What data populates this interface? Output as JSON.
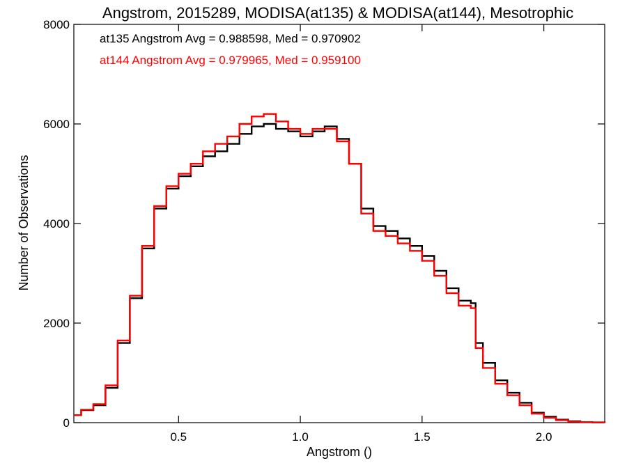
{
  "chart_data": {
    "type": "line",
    "step": true,
    "title": "Angstrom, 2015289, MODISA(at135) & MODISA(at144), Mesotrophic",
    "xlabel": "Angstrom ()",
    "ylabel": "Number of Observations",
    "xlim": [
      0.07,
      2.25
    ],
    "ylim": [
      0,
      8000
    ],
    "x_ticks": [
      0.5,
      1.0,
      1.5,
      2.0
    ],
    "x_tick_labels": [
      "0.5",
      "1.0",
      "1.5",
      "2.0"
    ],
    "y_ticks": [
      0,
      2000,
      4000,
      6000,
      8000
    ],
    "y_tick_labels": [
      "0",
      "2000",
      "4000",
      "6000",
      "8000"
    ],
    "grid": false,
    "legend_position": "top-left",
    "annotations": [
      {
        "text": "at135 Angstrom Avg = 0.988598, Med = 0.970902",
        "color": "#000000"
      },
      {
        "text": "at144 Angstrom Avg = 0.979965, Med = 0.959100",
        "color": "#ff0000"
      }
    ],
    "series": [
      {
        "color": "#000000",
        "x": [
          0.07,
          0.1,
          0.15,
          0.2,
          0.25,
          0.3,
          0.35,
          0.4,
          0.45,
          0.5,
          0.55,
          0.6,
          0.65,
          0.7,
          0.75,
          0.8,
          0.85,
          0.9,
          0.95,
          1.0,
          1.05,
          1.1,
          1.15,
          1.2,
          1.25,
          1.3,
          1.35,
          1.4,
          1.45,
          1.5,
          1.55,
          1.6,
          1.65,
          1.7,
          1.72,
          1.75,
          1.8,
          1.85,
          1.9,
          1.95,
          2.0,
          2.05,
          2.1,
          2.15,
          2.2,
          2.25
        ],
        "y": [
          150,
          250,
          350,
          700,
          1600,
          2500,
          3500,
          4300,
          4700,
          4950,
          5150,
          5350,
          5450,
          5600,
          5800,
          5950,
          6000,
          5900,
          5850,
          5750,
          5850,
          5950,
          5700,
          5200,
          4300,
          3950,
          3850,
          3700,
          3550,
          3350,
          3050,
          2700,
          2450,
          2400,
          1600,
          1200,
          850,
          600,
          400,
          200,
          120,
          60,
          30,
          10,
          5,
          0
        ]
      },
      {
        "color": "#ff0000",
        "x": [
          0.07,
          0.1,
          0.15,
          0.2,
          0.25,
          0.3,
          0.35,
          0.4,
          0.45,
          0.5,
          0.55,
          0.6,
          0.65,
          0.7,
          0.75,
          0.8,
          0.85,
          0.9,
          0.95,
          1.0,
          1.05,
          1.1,
          1.15,
          1.2,
          1.25,
          1.3,
          1.35,
          1.4,
          1.45,
          1.5,
          1.55,
          1.6,
          1.65,
          1.7,
          1.72,
          1.75,
          1.8,
          1.85,
          1.9,
          1.95,
          2.0,
          2.05,
          2.1,
          2.15,
          2.2,
          2.25
        ],
        "y": [
          150,
          260,
          370,
          750,
          1650,
          2550,
          3550,
          4350,
          4750,
          5000,
          5200,
          5450,
          5600,
          5750,
          6000,
          6150,
          6200,
          6050,
          5900,
          5800,
          5900,
          5900,
          5650,
          5200,
          4200,
          3850,
          3750,
          3600,
          3450,
          3250,
          2950,
          2600,
          2350,
          2300,
          1500,
          1100,
          780,
          550,
          350,
          180,
          100,
          50,
          20,
          8,
          3,
          0
        ]
      }
    ]
  }
}
